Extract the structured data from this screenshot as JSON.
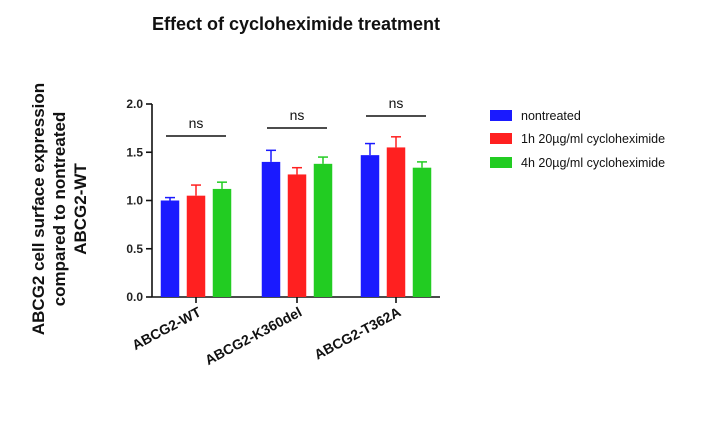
{
  "chart_data": {
    "type": "bar",
    "title": "Effect of cycloheximide treatment",
    "ylabel_lines": [
      "ABCG2 cell surface expression",
      "compared to nontreated",
      "ABCG2-WT"
    ],
    "xlabel": "",
    "categories": [
      "ABCG2-WT",
      "ABCG2-K360del",
      "ABCG2-T362A"
    ],
    "ylim": [
      0,
      2.0
    ],
    "yticks": [
      "0.0",
      "0.5",
      "1.0",
      "1.5",
      "2.0"
    ],
    "grid": false,
    "legend_position": "right",
    "series": [
      {
        "name": "nontreated",
        "color": "#1a1aff",
        "values": [
          1.0,
          1.4,
          1.47
        ],
        "errors": [
          0.03,
          0.12,
          0.12
        ]
      },
      {
        "name": "1h 20µg/ml cycloheximide",
        "color": "#ff2020",
        "values": [
          1.05,
          1.27,
          1.55
        ],
        "errors": [
          0.11,
          0.07,
          0.11
        ]
      },
      {
        "name": "4h 20µg/ml cycloheximide",
        "color": "#22cc22",
        "values": [
          1.12,
          1.38,
          1.34
        ],
        "errors": [
          0.07,
          0.07,
          0.06
        ]
      }
    ],
    "annotations": [
      "ns",
      "ns",
      "ns"
    ]
  }
}
